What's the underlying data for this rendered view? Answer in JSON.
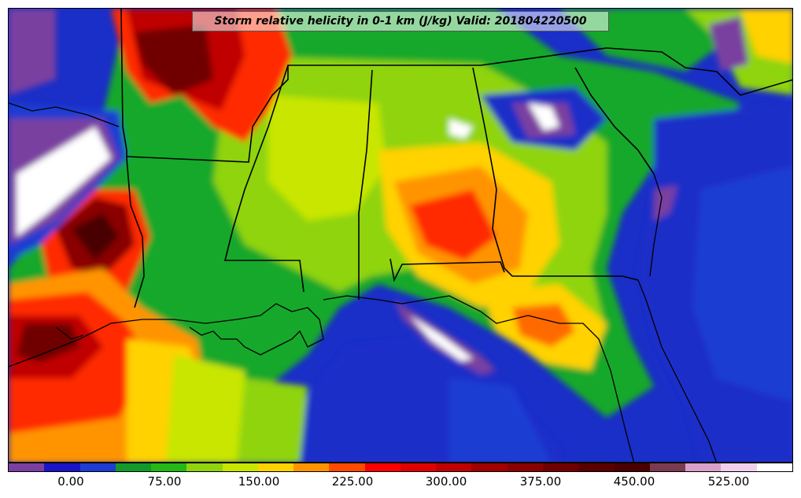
{
  "title": "Storm relative helicity in 0-1 km (J/kg) Valid: 201804220500",
  "colorbar": {
    "colors": [
      "#7a3fa0",
      "#1a14c8",
      "#1e3cd2",
      "#119a2a",
      "#23b814",
      "#8fd40d",
      "#c8e600",
      "#ffd200",
      "#ff9400",
      "#ff4a00",
      "#ff0000",
      "#e10000",
      "#c00000",
      "#a00000",
      "#8a0000",
      "#700000",
      "#5a0000",
      "#4a0000",
      "#7a3a50",
      "#d8a0c8",
      "#f0d0ec",
      "#ffffff"
    ],
    "tick_labels": [
      "0.00",
      "75.00",
      "150.00",
      "225.00",
      "300.00",
      "375.00",
      "450.00",
      "525.00"
    ]
  }
}
